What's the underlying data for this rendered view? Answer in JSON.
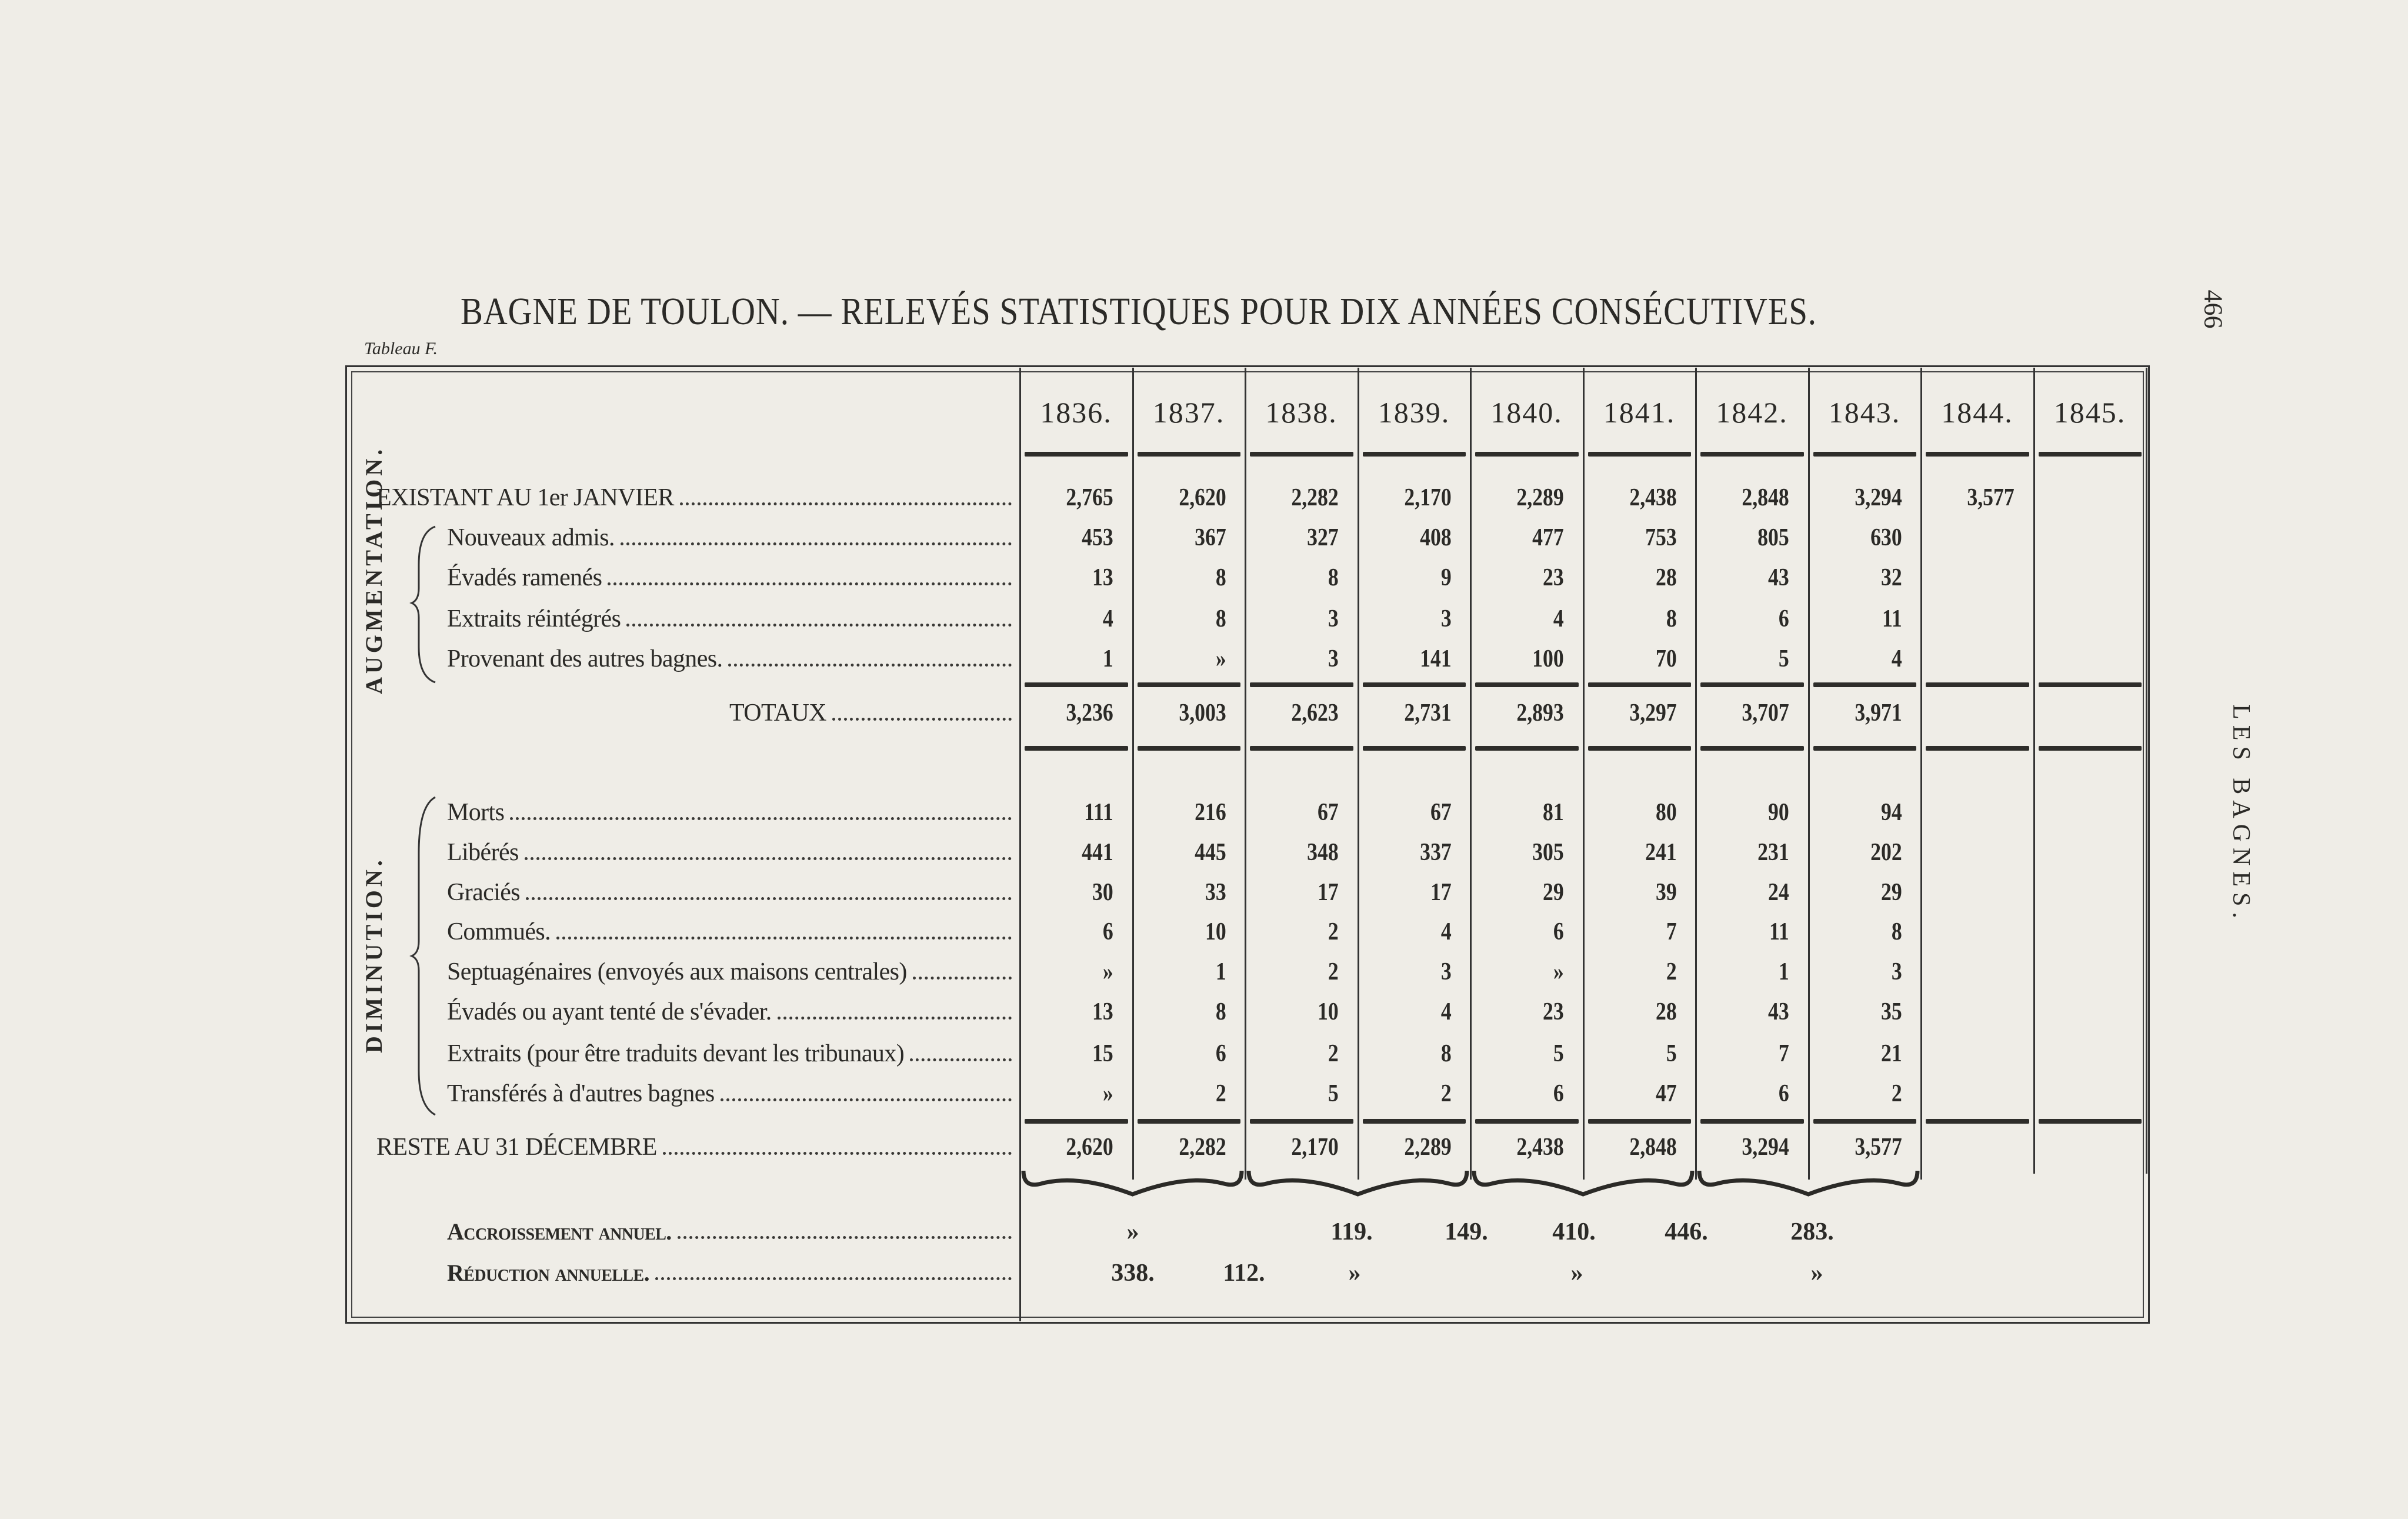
{
  "title": "BAGNE DE TOULON. — RELEVÉS STATISTIQUES POUR DIX ANNÉES CONSÉCUTIVES.",
  "table_label": "Tableau F.",
  "page_number": "466",
  "running_head": "LES BAGNES.",
  "years": [
    "1836.",
    "1837.",
    "1838.",
    "1839.",
    "1840.",
    "1841.",
    "1842.",
    "1843.",
    "1844.",
    "1845."
  ],
  "existant": {
    "label": "EXISTANT AU 1er JANVIER",
    "values": [
      "2,765",
      "2,620",
      "2,282",
      "2,170",
      "2,289",
      "2,438",
      "2,848",
      "3,294",
      "3,577",
      ""
    ]
  },
  "augmentation": {
    "group_label": "AUGMENTATION.",
    "rows": [
      {
        "label": "Nouveaux admis.",
        "values": [
          "453",
          "367",
          "327",
          "408",
          "477",
          "753",
          "805",
          "630",
          "",
          ""
        ]
      },
      {
        "label": "Évadés ramenés",
        "values": [
          "13",
          "8",
          "8",
          "9",
          "23",
          "28",
          "43",
          "32",
          "",
          ""
        ]
      },
      {
        "label": "Extraits réintégrés",
        "values": [
          "4",
          "8",
          "3",
          "3",
          "4",
          "8",
          "6",
          "11",
          "",
          ""
        ]
      },
      {
        "label": "Provenant des autres bagnes.",
        "values": [
          "1",
          "»",
          "3",
          "141",
          "100",
          "70",
          "5",
          "4",
          "",
          ""
        ]
      }
    ]
  },
  "totaux": {
    "label": "TOTAUX",
    "values": [
      "3,236",
      "3,003",
      "2,623",
      "2,731",
      "2,893",
      "3,297",
      "3,707",
      "3,971",
      "",
      ""
    ]
  },
  "diminution": {
    "group_label": "DIMINUTION.",
    "rows": [
      {
        "label": "Morts",
        "values": [
          "111",
          "216",
          "67",
          "67",
          "81",
          "80",
          "90",
          "94",
          "",
          ""
        ]
      },
      {
        "label": "Libérés",
        "values": [
          "441",
          "445",
          "348",
          "337",
          "305",
          "241",
          "231",
          "202",
          "",
          ""
        ]
      },
      {
        "label": "Graciés",
        "values": [
          "30",
          "33",
          "17",
          "17",
          "29",
          "39",
          "24",
          "29",
          "",
          ""
        ]
      },
      {
        "label": "Commués.",
        "values": [
          "6",
          "10",
          "2",
          "4",
          "6",
          "7",
          "11",
          "8",
          "",
          ""
        ]
      },
      {
        "label": "Septuagénaires (envoyés aux maisons centrales)",
        "values": [
          "»",
          "1",
          "2",
          "3",
          "»",
          "2",
          "1",
          "3",
          "",
          ""
        ]
      },
      {
        "label": "Évadés ou ayant tenté de s'évader.",
        "values": [
          "13",
          "8",
          "10",
          "4",
          "23",
          "28",
          "43",
          "35",
          "",
          ""
        ]
      },
      {
        "label": "Extraits (pour être traduits devant les tribunaux)",
        "values": [
          "15",
          "6",
          "2",
          "8",
          "5",
          "5",
          "7",
          "21",
          "",
          ""
        ]
      },
      {
        "label": "Transférés à d'autres bagnes",
        "values": [
          "»",
          "2",
          "5",
          "2",
          "6",
          "47",
          "6",
          "2",
          "",
          ""
        ]
      }
    ]
  },
  "reste": {
    "label": "RESTE AU 31 DÉCEMBRE",
    "values": [
      "2,620",
      "2,282",
      "2,170",
      "2,289",
      "2,438",
      "2,848",
      "3,294",
      "3,577",
      "",
      ""
    ]
  },
  "accroissement": {
    "label": "Accroissement annuel.",
    "values": [
      "»",
      "119.",
      "149.",
      "410.",
      "446.",
      "283."
    ]
  },
  "reduction": {
    "label": "Réduction annuelle.",
    "values": [
      "338.",
      "112.",
      "»",
      "»",
      "»"
    ]
  },
  "colors": {
    "paper": "#efede7",
    "ink": "#2b2a27"
  }
}
